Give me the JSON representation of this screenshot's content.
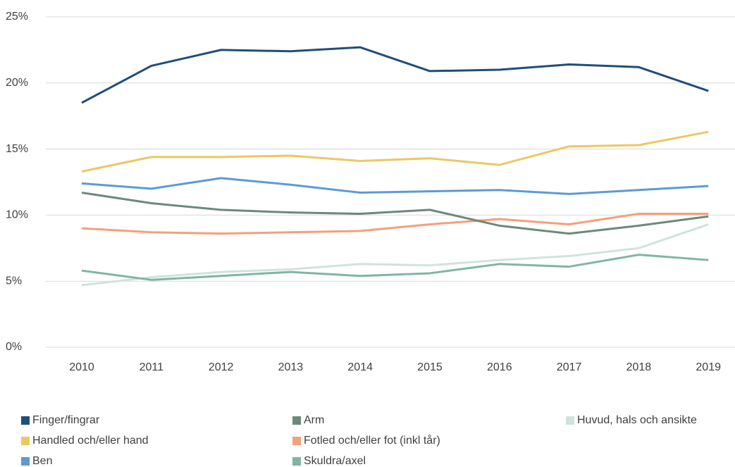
{
  "chart_data": {
    "type": "line",
    "categories": [
      "2010",
      "2011",
      "2012",
      "2013",
      "2014",
      "2015",
      "2016",
      "2017",
      "2018",
      "2019"
    ],
    "series": [
      {
        "name": "Finger/fingrar",
        "color": "#1f4e79",
        "values": [
          18.5,
          21.3,
          22.5,
          22.4,
          22.7,
          20.9,
          21.0,
          21.4,
          21.2,
          19.4
        ]
      },
      {
        "name": "Handled och/eller hand",
        "color": "#ecc764",
        "values": [
          13.3,
          14.4,
          14.4,
          14.5,
          14.1,
          14.3,
          13.8,
          15.2,
          15.3,
          16.3
        ]
      },
      {
        "name": "Ben",
        "color": "#5b9bd5",
        "values": [
          12.4,
          12.0,
          12.8,
          12.3,
          11.7,
          11.8,
          11.9,
          11.6,
          11.9,
          12.2
        ]
      },
      {
        "name": "Arm",
        "color": "#6b8a7a",
        "values": [
          11.7,
          10.9,
          10.4,
          10.2,
          10.1,
          10.4,
          9.2,
          8.6,
          9.2,
          9.9
        ]
      },
      {
        "name": "Fotled och/eller fot (inkl tår)",
        "color": "#f4a07a",
        "values": [
          9.0,
          8.7,
          8.6,
          8.7,
          8.8,
          9.3,
          9.7,
          9.3,
          10.1,
          10.1
        ]
      },
      {
        "name": "Skuldra/axel",
        "color": "#7fb5a5",
        "values": [
          5.8,
          5.1,
          5.4,
          5.7,
          5.4,
          5.6,
          6.3,
          6.1,
          7.0,
          6.6
        ]
      },
      {
        "name": "Huvud, hals och ansikte",
        "color": "#cfe3dc",
        "values": [
          4.7,
          5.3,
          5.7,
          5.9,
          6.3,
          6.2,
          6.6,
          6.9,
          7.5,
          9.3
        ]
      }
    ],
    "ylim": [
      0,
      25
    ],
    "yticks": [
      {
        "value": 0,
        "label": "0%"
      },
      {
        "value": 5,
        "label": "5%"
      },
      {
        "value": 10,
        "label": "10%"
      },
      {
        "value": 15,
        "label": "15%"
      },
      {
        "value": 20,
        "label": "20%"
      },
      {
        "value": 25,
        "label": "25%"
      }
    ],
    "grid": true,
    "legend": "bottom"
  }
}
